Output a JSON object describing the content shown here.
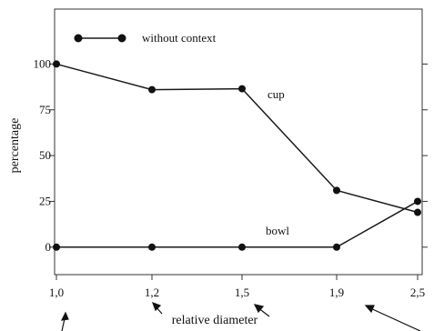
{
  "chart_data": {
    "type": "line",
    "title": "",
    "xlabel": "relative diameter",
    "ylabel": "percentage",
    "categories": [
      "1,0",
      "1,2",
      "1,5",
      "1,9",
      "2,5"
    ],
    "yticks": [
      0,
      25,
      50,
      75,
      100
    ],
    "ylim": [
      -15,
      130
    ],
    "grid": false,
    "legend": {
      "placement": "top-left",
      "label": "without context"
    },
    "series": [
      {
        "label": "cup",
        "values": [
          100,
          86,
          86.5,
          31,
          19
        ]
      },
      {
        "label": "bowl",
        "values": [
          0,
          0,
          0,
          0,
          25
        ]
      }
    ],
    "colors": {
      "line": "#1a1a1a",
      "axis": "#333333"
    }
  }
}
